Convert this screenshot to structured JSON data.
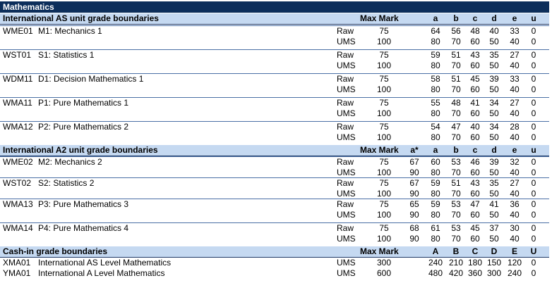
{
  "title": "Mathematics",
  "as_section": {
    "header": "International AS unit grade boundaries",
    "max_mark": "Max Mark",
    "grades": [
      "a",
      "b",
      "c",
      "d",
      "e",
      "u"
    ],
    "units": [
      {
        "code": "WME01",
        "name": "M1: Mechanics 1",
        "raw": {
          "label": "Raw",
          "max": "75",
          "g": [
            "64",
            "56",
            "48",
            "40",
            "33",
            "0"
          ]
        },
        "ums": {
          "label": "UMS",
          "max": "100",
          "g": [
            "80",
            "70",
            "60",
            "50",
            "40",
            "0"
          ]
        }
      },
      {
        "code": "WST01",
        "name": "S1: Statistics 1",
        "raw": {
          "label": "Raw",
          "max": "75",
          "g": [
            "59",
            "51",
            "43",
            "35",
            "27",
            "0"
          ]
        },
        "ums": {
          "label": "UMS",
          "max": "100",
          "g": [
            "80",
            "70",
            "60",
            "50",
            "40",
            "0"
          ]
        }
      },
      {
        "code": "WDM11",
        "name": "D1: Decision Mathematics 1",
        "raw": {
          "label": "Raw",
          "max": "75",
          "g": [
            "58",
            "51",
            "45",
            "39",
            "33",
            "0"
          ]
        },
        "ums": {
          "label": "UMS",
          "max": "100",
          "g": [
            "80",
            "70",
            "60",
            "50",
            "40",
            "0"
          ]
        }
      },
      {
        "code": "WMA11",
        "name": "P1: Pure Mathematics 1",
        "raw": {
          "label": "Raw",
          "max": "75",
          "g": [
            "55",
            "48",
            "41",
            "34",
            "27",
            "0"
          ]
        },
        "ums": {
          "label": "UMS",
          "max": "100",
          "g": [
            "80",
            "70",
            "60",
            "50",
            "40",
            "0"
          ]
        }
      },
      {
        "code": "WMA12",
        "name": "P2: Pure Mathematics 2",
        "raw": {
          "label": "Raw",
          "max": "75",
          "g": [
            "54",
            "47",
            "40",
            "34",
            "28",
            "0"
          ]
        },
        "ums": {
          "label": "UMS",
          "max": "100",
          "g": [
            "80",
            "70",
            "60",
            "50",
            "40",
            "0"
          ]
        }
      }
    ]
  },
  "a2_section": {
    "header": "International A2 unit grade boundaries",
    "max_mark": "Max Mark",
    "grades": [
      "a*",
      "a",
      "b",
      "c",
      "d",
      "e",
      "u"
    ],
    "units": [
      {
        "code": "WME02",
        "name": "M2: Mechanics 2",
        "raw": {
          "label": "Raw",
          "max": "75",
          "g": [
            "67",
            "60",
            "53",
            "46",
            "39",
            "32",
            "0"
          ]
        },
        "ums": {
          "label": "UMS",
          "max": "100",
          "g": [
            "90",
            "80",
            "70",
            "60",
            "50",
            "40",
            "0"
          ]
        }
      },
      {
        "code": "WST02",
        "name": "S2: Statistics 2",
        "raw": {
          "label": "Raw",
          "max": "75",
          "g": [
            "67",
            "59",
            "51",
            "43",
            "35",
            "27",
            "0"
          ]
        },
        "ums": {
          "label": "UMS",
          "max": "100",
          "g": [
            "90",
            "80",
            "70",
            "60",
            "50",
            "40",
            "0"
          ]
        }
      },
      {
        "code": "WMA13",
        "name": "P3: Pure Mathematics 3",
        "raw": {
          "label": "Raw",
          "max": "75",
          "g": [
            "65",
            "59",
            "53",
            "47",
            "41",
            "36",
            "0"
          ]
        },
        "ums": {
          "label": "UMS",
          "max": "100",
          "g": [
            "90",
            "80",
            "70",
            "60",
            "50",
            "40",
            "0"
          ]
        }
      },
      {
        "code": "WMA14",
        "name": "P4: Pure Mathematics 4",
        "raw": {
          "label": "Raw",
          "max": "75",
          "g": [
            "68",
            "61",
            "53",
            "45",
            "37",
            "30",
            "0"
          ]
        },
        "ums": {
          "label": "UMS",
          "max": "100",
          "g": [
            "90",
            "80",
            "70",
            "60",
            "50",
            "40",
            "0"
          ]
        }
      }
    ]
  },
  "cashin_section": {
    "header": "Cash-in grade boundaries",
    "max_mark": "Max Mark",
    "grades": [
      "A",
      "B",
      "C",
      "D",
      "E",
      "U"
    ],
    "rows": [
      {
        "code": "XMA01",
        "name": "International AS Level Mathematics",
        "label": "UMS",
        "max": "300",
        "g": [
          "240",
          "210",
          "180",
          "150",
          "120",
          "0"
        ]
      },
      {
        "code": "YMA01",
        "name": "International A Level Mathematics",
        "label": "UMS",
        "max": "600",
        "g": [
          "480",
          "420",
          "360",
          "300",
          "240",
          "0"
        ]
      }
    ]
  }
}
